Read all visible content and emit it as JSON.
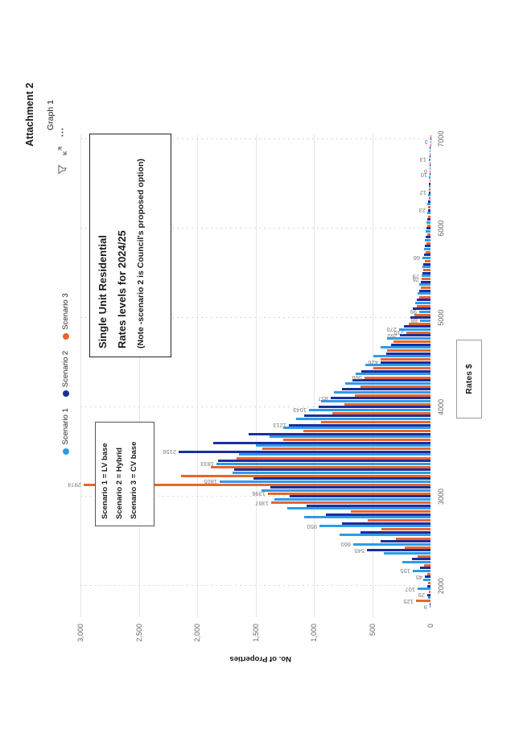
{
  "document": {
    "header": "Attachment 2",
    "graph_label": "Graph 1"
  },
  "visual_header": {
    "icons": [
      "filter-icon",
      "focus-mode-icon",
      "more-options-icon"
    ]
  },
  "legend": {
    "items": [
      {
        "label": "Scenario 1",
        "color": "#2E9BE8"
      },
      {
        "label": "Scenario 2",
        "color": "#1C2F9E"
      },
      {
        "label": "Scenario 3",
        "color": "#E8662B"
      }
    ]
  },
  "title_box": {
    "line1": "Single Unit Residential",
    "line2": "Rates levels for 2024/25",
    "line3": "(Note -scenario 2 is Council's proposed option)"
  },
  "key_box": {
    "lines": [
      "Scenario 1 = LV base",
      "Scenario 2 = Hybrid",
      "Scenario 3 = CV base"
    ]
  },
  "chart_data": {
    "type": "bar",
    "title": "",
    "xlabel": "Rates $",
    "ylabel": "No. of Properties",
    "xlim": [
      1650,
      7050
    ],
    "ylim": [
      0,
      3000
    ],
    "x_ticks": [
      2000,
      3000,
      4000,
      5000,
      6000,
      7000
    ],
    "x_tick_labels": [
      "2000",
      "3000",
      "4000",
      "5000",
      "6000",
      "7000"
    ],
    "y_ticks": [
      0,
      500,
      1000,
      1500,
      2000,
      2500,
      3000
    ],
    "y_tick_labels": [
      "0",
      "500",
      "1,000",
      "1,500",
      "2,000",
      "2,500",
      "3,000"
    ],
    "grid": {
      "x": "dotted",
      "y": "solid"
    },
    "legend_position": "top-center",
    "series_names": [
      "Scenario 1",
      "Scenario 2",
      "Scenario 3"
    ],
    "series_colors": [
      "#2E9BE8",
      "#1C2F9E",
      "#E8662B"
    ],
    "bin_width": 100,
    "bins": [
      {
        "x": 1800,
        "values": [
          9,
          4,
          125
        ],
        "labels": [
          "9",
          null,
          "125"
        ]
      },
      {
        "x": 1900,
        "values": [
          18,
          29,
          12
        ],
        "labels": [
          null,
          "29",
          null
        ]
      },
      {
        "x": 2000,
        "values": [
          107,
          30,
          22
        ],
        "labels": [
          "107",
          null,
          null
        ]
      },
      {
        "x": 2100,
        "values": [
          60,
          45,
          30
        ],
        "labels": [
          null,
          "45",
          null
        ]
      },
      {
        "x": 2200,
        "values": [
          155,
          90,
          55
        ],
        "labels": [
          "155",
          null,
          null
        ]
      },
      {
        "x": 2300,
        "values": [
          240,
          160,
          110
        ],
        "labels": null
      },
      {
        "x": 2400,
        "values": [
          400,
          545,
          220
        ],
        "labels": [
          null,
          "545",
          null
        ]
      },
      {
        "x": 2500,
        "values": [
          660,
          430,
          300
        ],
        "labels": [
          "660",
          null,
          null
        ]
      },
      {
        "x": 2600,
        "values": [
          780,
          600,
          420
        ],
        "labels": null
      },
      {
        "x": 2700,
        "values": [
          950,
          760,
          540
        ],
        "labels": [
          "950",
          null,
          null
        ]
      },
      {
        "x": 2800,
        "values": [
          1080,
          900,
          680
        ],
        "labels": null
      },
      {
        "x": 2900,
        "values": [
          1230,
          1060,
          1367
        ],
        "labels": [
          null,
          null,
          "1367"
        ]
      },
      {
        "x": 3000,
        "values": [
          1340,
          1210,
          1396
        ],
        "labels": [
          null,
          null,
          "1396"
        ]
      },
      {
        "x": 3100,
        "values": [
          1450,
          1370,
          2974
        ],
        "labels": [
          null,
          null,
          "2974"
        ]
      },
      {
        "x": 3200,
        "values": [
          1805,
          1520,
          2140
        ],
        "labels": [
          "1805",
          null,
          null
        ]
      },
      {
        "x": 3300,
        "values": [
          1700,
          1680,
          1880
        ],
        "labels": null
      },
      {
        "x": 3400,
        "values": [
          1833,
          1820,
          1660
        ],
        "labels": [
          "1833",
          null,
          null
        ]
      },
      {
        "x": 3500,
        "values": [
          1640,
          2156,
          1440
        ],
        "labels": [
          null,
          "2156",
          null
        ]
      },
      {
        "x": 3600,
        "values": [
          1500,
          1860,
          1260
        ],
        "labels": null
      },
      {
        "x": 3700,
        "values": [
          1380,
          1560,
          1090
        ],
        "labels": null
      },
      {
        "x": 3800,
        "values": [
          1260,
          1213,
          940
        ],
        "labels": [
          null,
          "1213",
          null
        ]
      },
      {
        "x": 3900,
        "values": [
          1150,
          1080,
          840
        ],
        "labels": null
      },
      {
        "x": 4000,
        "values": [
          1043,
          960,
          740
        ],
        "labels": [
          "1043",
          null,
          null
        ]
      },
      {
        "x": 4100,
        "values": [
          940,
          857,
          650
        ],
        "labels": [
          null,
          "857",
          null
        ]
      },
      {
        "x": 4200,
        "values": [
          830,
          760,
          600
        ],
        "labels": null
      },
      {
        "x": 4300,
        "values": [
          730,
          670,
          566
        ],
        "labels": [
          null,
          null,
          "566"
        ]
      },
      {
        "x": 4400,
        "values": [
          640,
          590,
          490
        ],
        "labels": null
      },
      {
        "x": 4500,
        "values": [
          560,
          426,
          430
        ],
        "labels": [
          null,
          "426",
          null
        ]
      },
      {
        "x": 4600,
        "values": [
          490,
          380,
          370
        ],
        "labels": null
      },
      {
        "x": 4700,
        "values": [
          430,
          340,
          320
        ],
        "labels": null
      },
      {
        "x": 4800,
        "values": [
          370,
          260,
          210
        ],
        "labels": [
          null,
          "260",
          "210"
        ]
      },
      {
        "x": 4900,
        "values": [
          270,
          230,
          185
        ],
        "labels": [
          "270",
          null,
          null
        ]
      },
      {
        "x": 5000,
        "values": [
          88,
          170,
          140
        ],
        "labels": [
          "88",
          null,
          null
        ]
      },
      {
        "x": 5100,
        "values": [
          99,
          150,
          120
        ],
        "labels": [
          "99",
          null,
          null
        ]
      },
      {
        "x": 5200,
        "values": [
          130,
          120,
          100
        ],
        "labels": null
      },
      {
        "x": 5300,
        "values": [
          110,
          100,
          85
        ],
        "labels": null
      },
      {
        "x": 5400,
        "values": [
          95,
          85,
          76
        ],
        "labels": [
          null,
          null,
          "76"
        ]
      },
      {
        "x": 5500,
        "values": [
          79,
          72,
          60
        ],
        "labels": [
          "79",
          null,
          null
        ]
      },
      {
        "x": 5600,
        "values": [
          68,
          60,
          50
        ],
        "labels": null
      },
      {
        "x": 5700,
        "values": [
          66,
          52,
          42
        ],
        "labels": [
          "66",
          null,
          null
        ]
      },
      {
        "x": 5800,
        "values": [
          55,
          45,
          36
        ],
        "labels": null
      },
      {
        "x": 5900,
        "values": [
          48,
          38,
          30
        ],
        "labels": null
      },
      {
        "x": 6000,
        "values": [
          42,
          33,
          26
        ],
        "labels": null
      },
      {
        "x": 6100,
        "values": [
          35,
          28,
          22
        ],
        "labels": null
      },
      {
        "x": 6200,
        "values": [
          30,
          23,
          18
        ],
        "labels": [
          null,
          "23",
          null
        ]
      },
      {
        "x": 6300,
        "values": [
          25,
          19,
          15
        ],
        "labels": null
      },
      {
        "x": 6400,
        "values": [
          20,
          12,
          12
        ],
        "labels": [
          null,
          "12",
          null
        ]
      },
      {
        "x": 6500,
        "values": [
          16,
          12,
          9
        ],
        "labels": null
      },
      {
        "x": 6600,
        "values": [
          12,
          10,
          6
        ],
        "labels": [
          null,
          "10",
          "6"
        ]
      },
      {
        "x": 6700,
        "values": [
          10,
          8,
          5
        ],
        "labels": null
      },
      {
        "x": 6800,
        "values": [
          13,
          6,
          4
        ],
        "labels": [
          "13",
          null,
          null
        ]
      },
      {
        "x": 6900,
        "values": [
          7,
          5,
          3
        ],
        "labels": null
      },
      {
        "x": 7000,
        "values": [
          3,
          2,
          2
        ],
        "labels": [
          "3",
          null,
          null
        ]
      }
    ]
  }
}
